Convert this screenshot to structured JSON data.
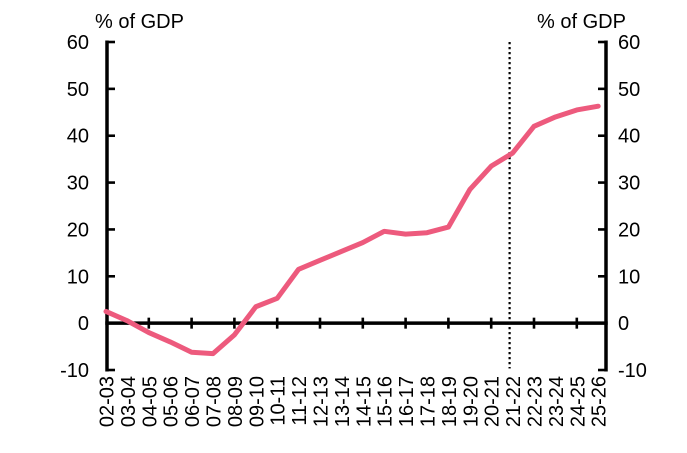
{
  "chart_data": {
    "type": "line",
    "title_left": "% of GDP",
    "title_right": "% of GDP",
    "categories": [
      "02-03",
      "03-04",
      "04-05",
      "05-06",
      "06-07",
      "07-08",
      "08-09",
      "09-10",
      "10-11",
      "11-12",
      "12-13",
      "13-14",
      "14-15",
      "15-16",
      "16-17",
      "17-18",
      "18-19",
      "19-20",
      "20-21",
      "21-22",
      "22-23",
      "23-24",
      "24-25",
      "25-26"
    ],
    "values": [
      2.5,
      0.5,
      -2,
      -4,
      -6.2,
      -6.5,
      -2.5,
      3.5,
      5.3,
      11.5,
      13.4,
      15.3,
      17.2,
      19.6,
      19.0,
      19.3,
      20.5,
      28.5,
      33.5,
      36.3,
      42.0,
      44.0,
      45.5,
      46.3
    ],
    "y_ticks": [
      60,
      50,
      40,
      30,
      20,
      10,
      0,
      -10
    ],
    "ylim": [
      -10,
      60
    ],
    "vline_category": "21-22",
    "vline_style": "dotted",
    "line_color": "#ED5A7D",
    "axis_color": "#000000",
    "background_color": "#ffffff",
    "grid": false,
    "legend": "none",
    "dual_axis": true,
    "x_label_rotation": -90
  }
}
